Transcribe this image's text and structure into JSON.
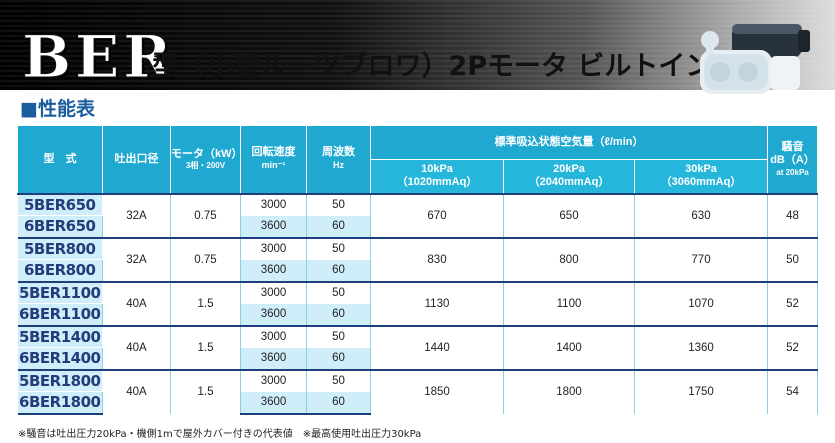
{
  "title": {
    "main": "BER",
    "rest": "型（小型ルーツブロワ）2Pモータ ビルトイン式"
  },
  "section": "■性能表",
  "headers": {
    "model": "型　式",
    "outlet": "吐出口径",
    "motor": "モータ（kW）",
    "motor_sub": "3相・200V",
    "speed": "回転速度",
    "speed_unit": "min⁻¹",
    "freq": "周波数",
    "freq_unit": "Hz",
    "air": "標準吸込状態空気量（ℓ/min）",
    "p1": "10kPa",
    "p1_sub": "（1020mmAq）",
    "p2": "20kPa",
    "p2_sub": "（2040mmAq）",
    "p3": "30kPa",
    "p3_sub": "（3060mmAq）",
    "noise": "騒音",
    "noise_unit": "dB（A）",
    "noise_sub": "at 20kPa"
  },
  "rows": [
    {
      "m1": "5BER650",
      "m2": "6BER650",
      "outlet": "32A",
      "motor": "0.75",
      "rpm1": "3000",
      "rpm2": "3600",
      "hz1": "50",
      "hz2": "60",
      "a": "670",
      "b": "650",
      "c": "630",
      "noise": "48"
    },
    {
      "m1": "5BER800",
      "m2": "6BER800",
      "outlet": "32A",
      "motor": "0.75",
      "rpm1": "3000",
      "rpm2": "3600",
      "hz1": "50",
      "hz2": "60",
      "a": "830",
      "b": "800",
      "c": "770",
      "noise": "50"
    },
    {
      "m1": "5BER1100",
      "m2": "6BER1100",
      "outlet": "40A",
      "motor": "1.5",
      "rpm1": "3000",
      "rpm2": "3600",
      "hz1": "50",
      "hz2": "60",
      "a": "1130",
      "b": "1100",
      "c": "1070",
      "noise": "52"
    },
    {
      "m1": "5BER1400",
      "m2": "6BER1400",
      "outlet": "40A",
      "motor": "1.5",
      "rpm1": "3000",
      "rpm2": "3600",
      "hz1": "50",
      "hz2": "60",
      "a": "1440",
      "b": "1400",
      "c": "1360",
      "noise": "52"
    },
    {
      "m1": "5BER1800",
      "m2": "6BER1800",
      "outlet": "40A",
      "motor": "1.5",
      "rpm1": "3000",
      "rpm2": "3600",
      "hz1": "50",
      "hz2": "60",
      "a": "1850",
      "b": "1800",
      "c": "1750",
      "noise": "54"
    }
  ],
  "footnote": "※騒音は吐出圧力20kPa・機側1mで屋外カバー付きの代表値　※最高使用吐出圧力30kPa",
  "colors": {
    "header_bg": "#1fa8d0",
    "model_bg": "#cfeefa",
    "model_text": "#233c7a",
    "accent": "#1a5ca0"
  },
  "icons": {
    "blower": "roots-blower-illustration"
  }
}
